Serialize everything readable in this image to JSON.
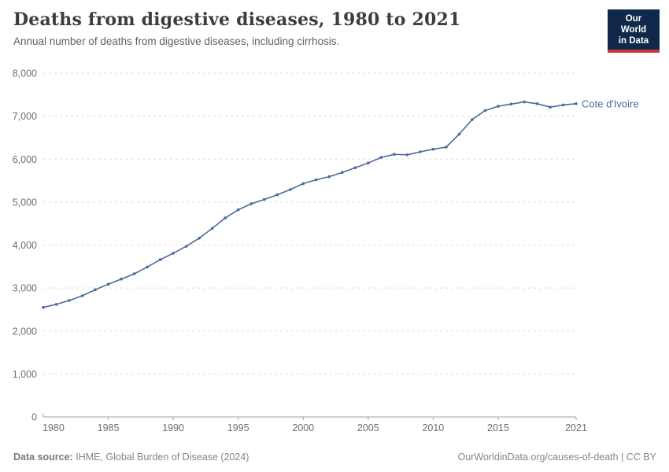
{
  "chart_data": {
    "type": "line",
    "title": "Deaths from digestive diseases, 1980 to 2021",
    "subtitle": "Annual number of deaths from digestive diseases, including cirrhosis.",
    "x": [
      1980,
      1981,
      1982,
      1983,
      1984,
      1985,
      1986,
      1987,
      1988,
      1989,
      1990,
      1991,
      1992,
      1993,
      1994,
      1995,
      1996,
      1997,
      1998,
      1999,
      2000,
      2001,
      2002,
      2003,
      2004,
      2005,
      2006,
      2007,
      2008,
      2009,
      2010,
      2011,
      2012,
      2013,
      2014,
      2015,
      2016,
      2017,
      2018,
      2019,
      2020,
      2021
    ],
    "series": [
      {
        "name": "Cote d'Ivoire",
        "values": [
          2550,
          2620,
          2710,
          2820,
          2960,
          3090,
          3210,
          3330,
          3490,
          3660,
          3810,
          3970,
          4160,
          4390,
          4630,
          4820,
          4960,
          5060,
          5170,
          5290,
          5430,
          5520,
          5590,
          5690,
          5800,
          5910,
          6040,
          6110,
          6100,
          6170,
          6230,
          6280,
          6580,
          6920,
          7130,
          7230,
          7280,
          7330,
          7290,
          7210,
          7260,
          7290
        ]
      }
    ],
    "xlabel": "",
    "ylabel": "",
    "ylim": [
      0,
      8000
    ],
    "ytick_step": 1000,
    "xticks": [
      1980,
      1985,
      1990,
      1995,
      2000,
      2005,
      2010,
      2015,
      2021
    ],
    "grid": true,
    "legend_position": "end-of-line",
    "line_color": "#4C6A9C",
    "gridline_color": "#dddddd",
    "axis_color": "#a1a1a1",
    "tick_label_color": "#6e6e6e"
  },
  "header": {
    "logo_line1": "Our World",
    "logo_line2": "in Data",
    "logo_bg": "#10294b",
    "logo_accent": "#c5383c"
  },
  "footer": {
    "source_label": "Data source:",
    "source_text": " IHME, Global Burden of Disease (2024)",
    "link_text": "OurWorldinData.org/causes-of-death | CC BY"
  }
}
